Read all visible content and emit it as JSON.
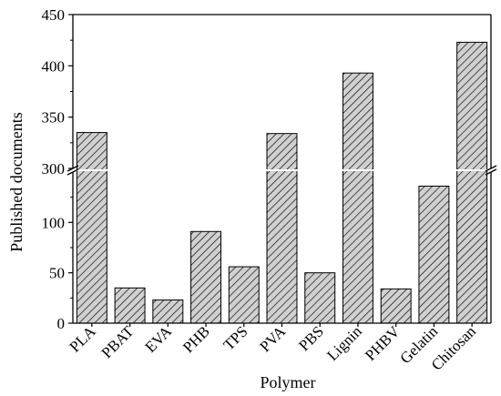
{
  "chart_data": {
    "type": "bar",
    "title": "",
    "xlabel": "Polymer",
    "ylabel": "Published documents",
    "categories": [
      "PLA",
      "PBAT",
      "EVA",
      "PHB",
      "TPS",
      "PVA",
      "PBS",
      "Lignin",
      "PHBV",
      "Gelatin",
      "Chitosan"
    ],
    "values": [
      335,
      35,
      23,
      91,
      56,
      334,
      50,
      393,
      34,
      136,
      423
    ],
    "y_axis_break": {
      "lower_range": [
        0,
        150
      ],
      "upper_range": [
        300,
        450
      ]
    },
    "lower_ticks": [
      0,
      50,
      100
    ],
    "upper_ticks": [
      300,
      350,
      400,
      450
    ],
    "bar_fill": "hatched",
    "grid": false,
    "legend": "none",
    "colors": {
      "bar_fill": "#d0d0d0",
      "hatch": "#000000",
      "axis": "#000000"
    }
  }
}
